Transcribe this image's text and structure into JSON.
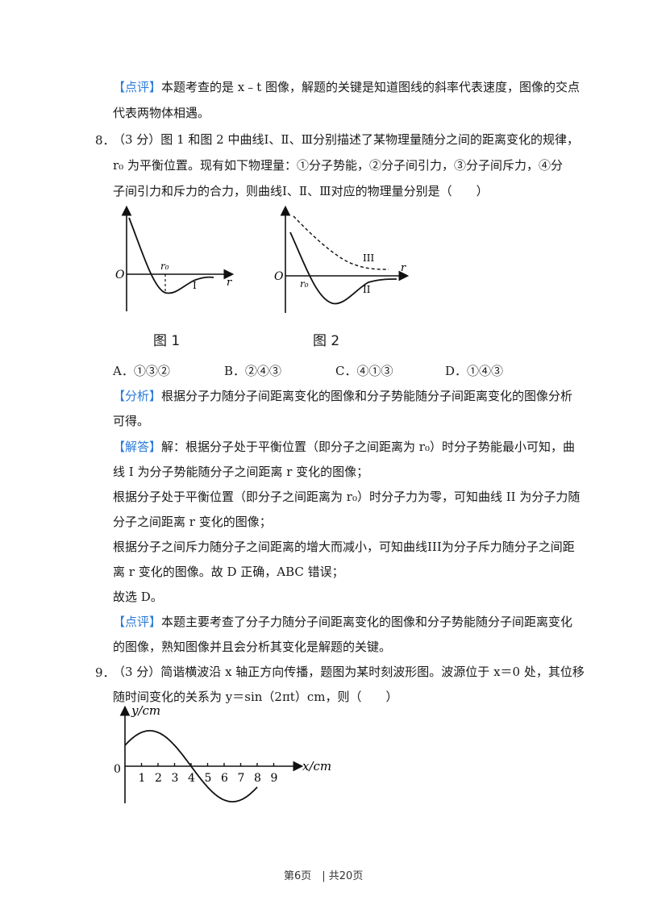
{
  "q7_review": {
    "tag": "【点评】",
    "line1": "本题考查的是 x﹣t 图像，解题的关键是知道图线的斜率代表速度，图像的交点",
    "line2": "代表两物体相遇。"
  },
  "q8": {
    "num": "8．",
    "line1": "（3 分）图 1 和图 2 中曲线Ⅰ、Ⅱ、Ⅲ分别描述了某物理量随分之间的距离变化的规律，",
    "line2": "r₀ 为平衡位置。现有如下物理量：①分子势能，②分子间引力，③分子间斥力，④分",
    "line3": "子间引力和斥力的合力，则曲线Ⅰ、Ⅱ、Ⅲ对应的物理量分别是（　　）",
    "fig1": {
      "caption": "图 1",
      "origin": "O",
      "axis": "r",
      "r0": "r₀",
      "curve": "I"
    },
    "fig2": {
      "caption": "图 2",
      "origin": "O",
      "axis": "r",
      "r0": "r₀",
      "curve2": "II",
      "curve3": "III"
    },
    "options": [
      {
        "key": "A．",
        "text": "①③②"
      },
      {
        "key": "B．",
        "text": "②④③"
      },
      {
        "key": "C．",
        "text": "④①③"
      },
      {
        "key": "D．",
        "text": "①④③"
      }
    ],
    "analysis_tag": "【分析】",
    "analysis1": "根据分子力随分子间距离变化的图像和分子势能随分子间距离变化的图像分析",
    "analysis2": "可得。",
    "answer_tag": "【解答】",
    "answer1": "解：根据分子处于平衡位置（即分子之间距离为 r₀）时分子势能最小可知，曲",
    "answer2": "线 I 为分子势能随分子之间距离 r 变化的图像；",
    "answer3": "根据分子处于平衡位置（即分子之间距离为 r₀）时分子力为零，可知曲线 II 为分子力随",
    "answer4": "分子之间距离 r 变化的图像；",
    "answer5": "根据分子之间斥力随分子之间距离的增大而减小，可知曲线III为分子斥力随分子之间距",
    "answer6": "离 r 变化的图像。故 D 正确，ABC 错误；",
    "answer7": "故选 D。",
    "review_tag": "【点评】",
    "review1": "本题主要考查了分子力随分子间距离变化的图像和分子势能随分子间距离变化",
    "review2": "的图像，熟知图像并且会分析其变化是解题的关键。"
  },
  "q9": {
    "num": "9．",
    "line1": "（3 分）简谐横波沿 x 轴正方向传播，题图为某时刻波形图。波源位于 x＝0 处，其位移",
    "line2": "随时间变化的关系为 y＝sin（2πt）cm，则（　　）",
    "fig": {
      "ylabel": "y/cm",
      "xlabel": "x/cm",
      "origin": "0",
      "ticks": [
        "1",
        "2",
        "3",
        "4",
        "5",
        "6",
        "7",
        "8",
        "9"
      ]
    }
  },
  "footer": {
    "text": "第6页　| 共20页"
  }
}
